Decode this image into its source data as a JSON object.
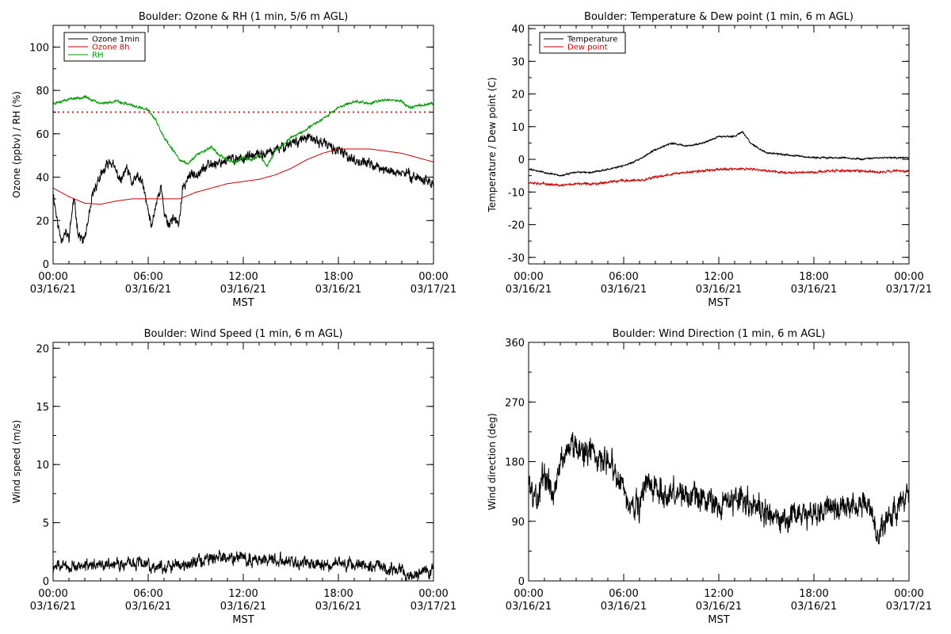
{
  "chart_data": [
    {
      "id": "ozone_rh",
      "type": "line",
      "title": "Boulder: Ozone & RH (1 min, 5/6 m AGL)",
      "xlabel": "MST",
      "ylabel": "Ozone (ppbv) / RH (%)",
      "ylim": [
        0,
        110
      ],
      "yticks": [
        0,
        20,
        40,
        60,
        80,
        100
      ],
      "xlim": [
        0,
        24
      ],
      "xticks": [
        0,
        6,
        12,
        18,
        24
      ],
      "xtick_labels": [
        [
          "00:00",
          "03/16/21"
        ],
        [
          "06:00",
          "03/16/21"
        ],
        [
          "12:00",
          "03/16/21"
        ],
        [
          "18:00",
          "03/16/21"
        ],
        [
          "00:00",
          "03/17/21"
        ]
      ],
      "x_units": "hours MST from 03/16/21 00:00",
      "legend": {
        "position": "top-left",
        "entries": [
          {
            "name": "Ozone 1min",
            "color": "#000000"
          },
          {
            "name": "Ozone 8h",
            "color": "#cc0000"
          },
          {
            "name": "RH",
            "color": "#009900"
          }
        ]
      },
      "hlines": [
        {
          "y": 70,
          "style": "dotted",
          "color": "#cc0000"
        }
      ],
      "series": [
        {
          "name": "Ozone 1min",
          "color": "#000000",
          "noise": 2.5,
          "seed": 11,
          "x": [
            0,
            0.3,
            0.5,
            0.8,
            1.0,
            1.3,
            1.6,
            1.9,
            2.2,
            2.5,
            2.8,
            3.0,
            3.3,
            3.6,
            4.0,
            4.3,
            4.6,
            5.0,
            5.3,
            5.6,
            5.9,
            6.2,
            6.5,
            6.8,
            7.0,
            7.3,
            7.6,
            7.9,
            8.2,
            8.5,
            9,
            10,
            11,
            12,
            13,
            14,
            15,
            16,
            17,
            18,
            19,
            20,
            21,
            22,
            23,
            24
          ],
          "y": [
            33,
            18,
            12,
            14,
            12,
            30,
            14,
            10,
            18,
            32,
            38,
            40,
            44,
            48,
            42,
            38,
            44,
            37,
            40,
            38,
            28,
            17,
            28,
            36,
            24,
            18,
            22,
            17,
            35,
            40,
            42,
            46,
            48,
            49,
            50,
            52,
            56,
            58,
            56,
            52,
            48,
            46,
            43,
            42,
            40,
            37
          ]
        },
        {
          "name": "Ozone 8h",
          "color": "#cc0000",
          "noise": 0,
          "seed": 0,
          "x": [
            0,
            1,
            2,
            3,
            4,
            5,
            6,
            7,
            8,
            9,
            10,
            11,
            12,
            13,
            14,
            15,
            16,
            17,
            18,
            19,
            20,
            21,
            22,
            23,
            24
          ],
          "y": [
            35,
            31,
            28,
            27.5,
            29,
            30,
            30,
            30,
            30,
            33,
            35,
            37,
            38,
            39,
            41,
            44,
            48,
            51,
            53,
            53,
            53,
            52,
            51,
            49,
            47
          ]
        },
        {
          "name": "RH",
          "color": "#009900",
          "noise": 0.6,
          "seed": 23,
          "x": [
            0,
            1,
            2,
            3,
            4,
            5,
            6,
            6.5,
            7,
            7.5,
            8,
            8.5,
            9,
            9.5,
            10,
            10.5,
            11,
            11.5,
            12,
            12.5,
            13,
            13.5,
            14,
            15,
            16,
            17,
            18,
            19,
            20,
            21,
            22,
            22.5,
            23,
            24
          ],
          "y": [
            74,
            76,
            77,
            74,
            75,
            73,
            71,
            66,
            58,
            53,
            48,
            46,
            50,
            52,
            54,
            50,
            48,
            47,
            49,
            48,
            50,
            45,
            52,
            58,
            62,
            67,
            72,
            75,
            74,
            76,
            75,
            72,
            73,
            74
          ]
        }
      ]
    },
    {
      "id": "temp_dew",
      "type": "line",
      "title": "Boulder: Temperature & Dew point (1 min, 6 m AGL)",
      "xlabel": "MST",
      "ylabel": "Temperature / Dew point (C)",
      "ylim": [
        -32,
        41
      ],
      "yticks": [
        -30,
        -20,
        -10,
        0,
        10,
        20,
        30,
        40
      ],
      "xlim": [
        0,
        24
      ],
      "xticks": [
        0,
        6,
        12,
        18,
        24
      ],
      "xtick_labels": [
        [
          "00:00",
          "03/16/21"
        ],
        [
          "06:00",
          "03/16/21"
        ],
        [
          "12:00",
          "03/16/21"
        ],
        [
          "18:00",
          "03/16/21"
        ],
        [
          "00:00",
          "03/17/21"
        ]
      ],
      "legend": {
        "position": "top-left",
        "entries": [
          {
            "name": "Temperature",
            "color": "#000000"
          },
          {
            "name": "Dew point",
            "color": "#cc0000"
          }
        ]
      },
      "series": [
        {
          "name": "Temperature",
          "color": "#000000",
          "noise": 0.25,
          "seed": 31,
          "x": [
            0,
            1,
            2,
            3,
            4,
            5,
            6,
            7,
            8,
            9,
            10,
            11,
            12,
            13,
            13.5,
            14,
            15,
            16,
            17,
            18,
            19,
            20,
            21,
            22,
            23,
            24
          ],
          "y": [
            -3,
            -4,
            -5,
            -4,
            -4,
            -3,
            -2,
            0,
            3,
            5,
            4,
            5,
            7,
            7,
            8.5,
            5,
            2,
            1.5,
            1,
            0.5,
            0.5,
            0.5,
            0,
            0.5,
            0.5,
            0.5
          ]
        },
        {
          "name": "Dew point",
          "color": "#cc0000",
          "noise": 0.35,
          "seed": 37,
          "x": [
            0,
            1,
            2,
            3,
            4,
            5,
            6,
            7,
            8,
            9,
            10,
            11,
            12,
            13,
            14,
            15,
            16,
            17,
            18,
            19,
            20,
            21,
            22,
            23,
            24
          ],
          "y": [
            -7,
            -7.5,
            -8,
            -7.5,
            -7.5,
            -7,
            -6.5,
            -6.5,
            -5.5,
            -4.5,
            -4,
            -3.5,
            -3,
            -3,
            -3,
            -3.5,
            -4,
            -4,
            -4,
            -3.5,
            -3.5,
            -3.5,
            -4,
            -3.5,
            -3.5
          ]
        }
      ]
    },
    {
      "id": "wind_speed",
      "type": "line",
      "title": "Boulder: Wind Speed (1 min, 6 m AGL)",
      "xlabel": "MST",
      "ylabel": "Wind speed (m/s)",
      "ylim": [
        0,
        20.5
      ],
      "yticks": [
        0,
        5,
        10,
        15,
        20
      ],
      "xlim": [
        0,
        24
      ],
      "xticks": [
        0,
        6,
        12,
        18,
        24
      ],
      "xtick_labels": [
        [
          "00:00",
          "03/16/21"
        ],
        [
          "06:00",
          "03/16/21"
        ],
        [
          "12:00",
          "03/16/21"
        ],
        [
          "18:00",
          "03/16/21"
        ],
        [
          "00:00",
          "03/17/21"
        ]
      ],
      "series": [
        {
          "name": "Wind speed",
          "color": "#000000",
          "noise": 0.55,
          "seed": 47,
          "min": 0,
          "x": [
            0,
            1,
            2,
            3,
            4,
            5,
            5.5,
            6,
            7,
            8,
            9,
            10,
            11,
            12,
            13,
            14,
            15,
            16,
            17,
            18,
            19,
            20,
            21,
            22,
            22.5,
            23,
            24
          ],
          "y": [
            1.2,
            1.3,
            1.2,
            1.4,
            1.5,
            1.4,
            1.8,
            1.3,
            1.2,
            1.4,
            1.7,
            1.9,
            2.0,
            1.9,
            1.9,
            1.8,
            1.7,
            1.5,
            1.4,
            1.4,
            1.4,
            1.2,
            1.1,
            0.9,
            0.5,
            0.8,
            1.0
          ]
        }
      ]
    },
    {
      "id": "wind_dir",
      "type": "line",
      "title": "Boulder: Wind Direction (1 min, 6 m AGL)",
      "xlabel": "MST",
      "ylabel": "Wind direction (deg)",
      "ylim": [
        0,
        360
      ],
      "yticks": [
        0,
        90,
        180,
        270,
        360
      ],
      "xlim": [
        0,
        24
      ],
      "xticks": [
        0,
        6,
        12,
        18,
        24
      ],
      "xtick_labels": [
        [
          "00:00",
          "03/16/21"
        ],
        [
          "06:00",
          "03/16/21"
        ],
        [
          "12:00",
          "03/16/21"
        ],
        [
          "18:00",
          "03/16/21"
        ],
        [
          "00:00",
          "03/17/21"
        ]
      ],
      "series": [
        {
          "name": "Wind direction",
          "color": "#000000",
          "noise": 22,
          "seed": 59,
          "min": 0,
          "max": 360,
          "x": [
            0,
            0.5,
            1,
            1.5,
            2,
            2.5,
            3,
            3.5,
            4,
            4.5,
            5,
            5.5,
            6,
            6.5,
            7,
            7.5,
            8,
            9,
            10,
            11,
            12,
            13,
            14,
            15,
            16,
            17,
            18,
            19,
            20,
            21,
            21.5,
            22,
            22.5,
            23,
            24
          ],
          "y": [
            150,
            120,
            170,
            130,
            180,
            200,
            210,
            190,
            200,
            190,
            180,
            170,
            130,
            120,
            110,
            150,
            140,
            130,
            130,
            125,
            120,
            125,
            120,
            100,
            90,
            100,
            100,
            110,
            115,
            120,
            110,
            70,
            90,
            110,
            120
          ]
        }
      ]
    }
  ]
}
